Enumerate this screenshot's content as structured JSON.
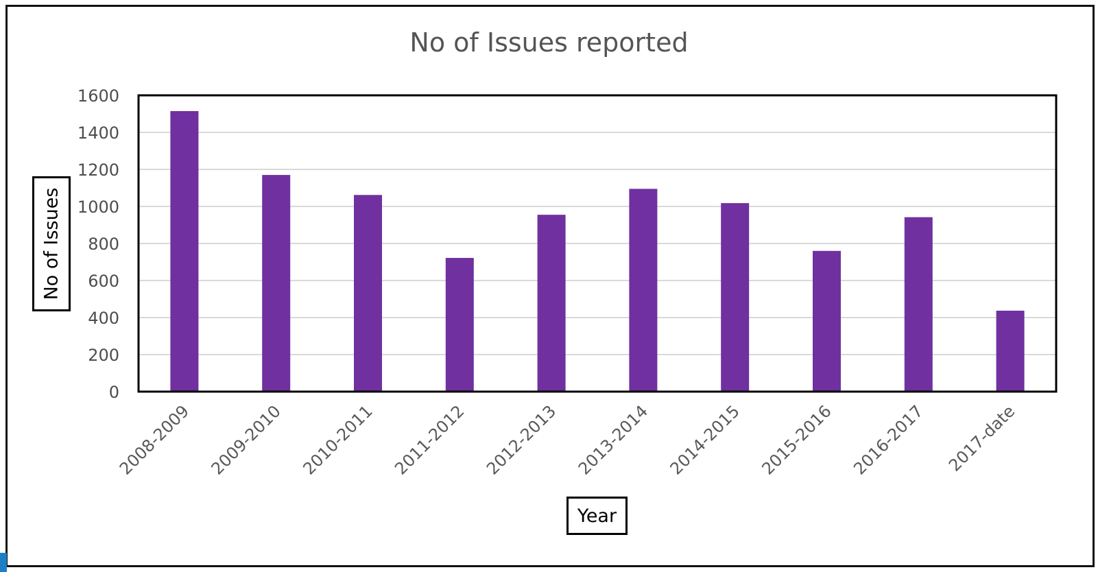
{
  "colors": {
    "bar": "#7030a0",
    "grid": "#d9d9d9",
    "plot_border": "#000000"
  },
  "chart_data": {
    "type": "bar",
    "title": "No of Issues reported",
    "xlabel": "Year",
    "ylabel": "No of Issues",
    "categories": [
      "2008-2009",
      "2009-2010",
      "2010-2011",
      "2011-2012",
      "2012-2013",
      "2013-2014",
      "2014-2015",
      "2015-2016",
      "2016-2017",
      "2017-date"
    ],
    "values": [
      1515,
      1170,
      1062,
      722,
      955,
      1095,
      1018,
      760,
      942,
      437
    ],
    "ylim": [
      0,
      1600
    ],
    "yticks": [
      "0",
      "200",
      "400",
      "600",
      "800",
      "1000",
      "1200",
      "1400",
      "1600"
    ],
    "grid": true,
    "legend": "none"
  }
}
